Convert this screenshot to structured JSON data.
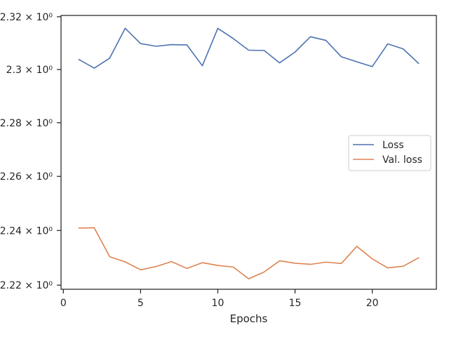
{
  "chart_data": {
    "type": "line",
    "title": "",
    "xlabel": "Epochs",
    "ylabel": "",
    "xlim": [
      -0.15,
      24.15
    ],
    "ylim": [
      2.2185,
      2.3205
    ],
    "y_scale": "log",
    "grid": false,
    "legend_position": "center-right",
    "x_ticks": [
      {
        "value": 0,
        "label": "0"
      },
      {
        "value": 5,
        "label": "5"
      },
      {
        "value": 10,
        "label": "10"
      },
      {
        "value": 15,
        "label": "15"
      },
      {
        "value": 20,
        "label": "20"
      }
    ],
    "y_ticks": [
      {
        "value": 2.22,
        "label": "2.22 × 10⁰"
      },
      {
        "value": 2.24,
        "label": "2.24 × 10⁰"
      },
      {
        "value": 2.26,
        "label": "2.26 × 10⁰"
      },
      {
        "value": 2.28,
        "label": "2.28 × 10⁰"
      },
      {
        "value": 2.3,
        "label": "2.3 × 10⁰"
      },
      {
        "value": 2.32,
        "label": "2.32 × 10⁰"
      }
    ],
    "x": [
      1,
      2,
      3,
      4,
      5,
      6,
      7,
      8,
      9,
      10,
      11,
      12,
      13,
      14,
      15,
      16,
      17,
      18,
      19,
      20,
      21,
      22,
      23
    ],
    "series": [
      {
        "name": "Loss",
        "color": "#4c72b0",
        "values": [
          2.3038,
          2.3005,
          2.3043,
          2.3156,
          2.3098,
          2.3088,
          2.3094,
          2.3093,
          2.3014,
          2.3156,
          2.3117,
          2.3073,
          2.3072,
          2.3025,
          2.3066,
          2.3124,
          2.311,
          2.3048,
          2.3029,
          2.3011,
          2.3097,
          2.3078,
          2.3023
        ]
      },
      {
        "name": "Val. loss",
        "color": "#dd8452",
        "values": [
          2.2409,
          2.241,
          2.2304,
          2.2285,
          2.2256,
          2.2268,
          2.2286,
          2.2261,
          2.2282,
          2.2272,
          2.2266,
          2.2223,
          2.2248,
          2.2289,
          2.228,
          2.2276,
          2.2284,
          2.2279,
          2.2342,
          2.2296,
          2.2263,
          2.2269,
          2.23
        ]
      }
    ]
  }
}
